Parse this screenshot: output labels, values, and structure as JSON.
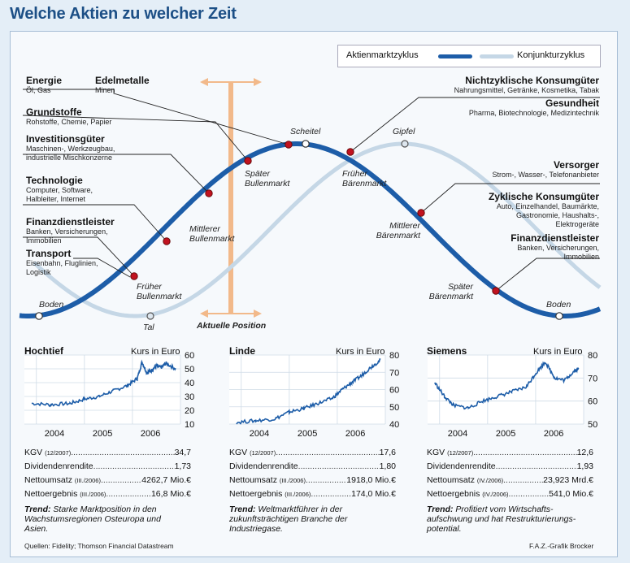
{
  "title": "Welche Aktien zu welcher Zeit",
  "legend": {
    "market": "Aktienmarktzyklus",
    "economy": "Konjunkturzyklus",
    "market_color": "#1d5da8",
    "economy_color": "#c5d7e6"
  },
  "cycle_points": {
    "boden_left": "Boden",
    "tal": "Tal",
    "scheitel": "Scheitel",
    "gipfel": "Gipfel",
    "boden_right": "Boden",
    "frueher_bullen": [
      "Früher",
      "Bullenmarkt"
    ],
    "mittlerer_bullen": [
      "Mittlerer",
      "Bullenmarkt"
    ],
    "spaeter_bullen": [
      "Später",
      "Bullenmarkt"
    ],
    "frueher_baeren": [
      "Früher",
      "Bärenmarkt"
    ],
    "mittlerer_baeren": [
      "Mittlerer",
      "Bärenmarkt"
    ],
    "spaeter_baeren": [
      "Später",
      "Bärenmarkt"
    ],
    "aktuelle_position": "Aktuelle Position"
  },
  "sectors_left": [
    {
      "name": "Energie",
      "desc": [
        "Öl, Gas"
      ]
    },
    {
      "name": "Edelmetalle",
      "desc": [
        "Minen"
      ]
    },
    {
      "name": "Grundstoffe",
      "desc": [
        "Rohstoffe, Chemie, Papier"
      ]
    },
    {
      "name": "Investitionsgüter",
      "desc": [
        "Maschinen-, Werkzeugbau,",
        "industrielle Mischkonzerne"
      ]
    },
    {
      "name": "Technologie",
      "desc": [
        "Computer, Software,",
        "Halbleiter, Internet"
      ]
    },
    {
      "name": "Finanzdienstleister",
      "desc": [
        "Banken, Versicherungen,",
        "Immobilien"
      ]
    },
    {
      "name": "Transport",
      "desc": [
        "Eisenbahn, Fluglinien,",
        "Logistik"
      ]
    }
  ],
  "sectors_right": [
    {
      "name": "Nichtzyklische Konsumgüter",
      "desc": [
        "Nahrungsmittel, Getränke, Kosmetika, Tabak"
      ]
    },
    {
      "name": "Gesundheit",
      "desc": [
        "Pharma, Biotechnologie, Medizintechnik"
      ]
    },
    {
      "name": "Versorger",
      "desc": [
        "Strom-, Wasser-, Telefonanbieter"
      ]
    },
    {
      "name": "Zyklische Konsumgüter",
      "desc": [
        "Auto, Einzelhandel, Baumärkte,",
        "Gastronomie, Haushalts-,",
        "Elektrogeräte"
      ]
    },
    {
      "name": "Finanzdienstleister",
      "desc": [
        "Banken, Versicherungen,",
        "Immobilien"
      ]
    }
  ],
  "stocks": [
    {
      "name": "Hochtief",
      "unit": "Kurs in Euro",
      "years": [
        "2004",
        "2005",
        "2006"
      ],
      "yticks": [
        "60",
        "50",
        "40",
        "30",
        "20",
        "10"
      ],
      "kgv_label": "KGV",
      "kgv_sub": "(12/2007)",
      "kgv": "34,7",
      "div_label": "Dividendenrendite",
      "div": "1,73",
      "umsatz_label": "Nettoumsatz",
      "umsatz_sub": "(III./2006)",
      "umsatz": "4262,7 Mio.€",
      "ergebnis_label": "Nettoergebnis",
      "ergebnis_sub": "(III./2006)",
      "ergebnis": "16,8 Mio.€",
      "trend_label": "Trend:",
      "trend": "Starke Marktposition in den Wachstumsregionen Osteuropa und Asien."
    },
    {
      "name": "Linde",
      "unit": "Kurs in Euro",
      "years": [
        "2004",
        "2005",
        "2006"
      ],
      "yticks": [
        "80",
        "70",
        "60",
        "50",
        "40"
      ],
      "kgv_label": "KGV",
      "kgv_sub": "(12/2007)",
      "kgv": "17,6",
      "div_label": "Dividendenrendite",
      "div": "1,80",
      "umsatz_label": "Nettoumsatz",
      "umsatz_sub": "(III./2006)",
      "umsatz": "1918,0 Mio.€",
      "ergebnis_label": "Nettoergebnis",
      "ergebnis_sub": "(III./2006)",
      "ergebnis": "174,0 Mio.€",
      "trend_label": "Trend:",
      "trend": "Weltmarktführer in der zukunftsträchtigen Branche der Industriegase."
    },
    {
      "name": "Siemens",
      "unit": "Kurs in Euro",
      "years": [
        "2004",
        "2005",
        "2006"
      ],
      "yticks": [
        "80",
        "70",
        "60",
        "50"
      ],
      "kgv_label": "KGV",
      "kgv_sub": "(12/2007)",
      "kgv": "12,6",
      "div_label": "Dividendenrendite",
      "div": "1,93",
      "umsatz_label": "Nettoumsatz",
      "umsatz_sub": "(IV./2006)",
      "umsatz": "23,923 Mrd.€",
      "ergebnis_label": "Nettoergebnis",
      "ergebnis_sub": "(IV./2006)",
      "ergebnis": "541,0 Mio.€",
      "trend_label": "Trend:",
      "trend": "Profitiert vom Wirtschafts- aufschwung und hat Restrukturierungs- potential."
    }
  ],
  "footer": {
    "source": "Quellen: Fidelity; Thomson Financial Datastream",
    "credit": "F.A.Z.-Grafik Brocker"
  },
  "chart_data": [
    {
      "type": "line",
      "title": "Aktienmarktzyklus vs. Konjunkturzyklus",
      "series": [
        {
          "name": "Aktienmarktzyklus",
          "shape": "sine",
          "phase_lead": 0.17
        },
        {
          "name": "Konjunkturzyklus",
          "shape": "sine"
        }
      ],
      "markers": [
        "Boden",
        "Früher Bullenmarkt",
        "Mittlerer Bullenmarkt",
        "Später Bullenmarkt",
        "Scheitel",
        "Früher Bärenmarkt",
        "Mittlerer Bärenmarkt",
        "Später Bärenmarkt",
        "Boden"
      ],
      "current_position": "Später Bullenmarkt"
    },
    {
      "type": "line",
      "title": "Hochtief",
      "ylabel": "Kurs in Euro",
      "ylim": [
        10,
        60
      ],
      "x": [
        "2003.9",
        "2004.3",
        "2004.7",
        "2005.0",
        "2005.3",
        "2005.6",
        "2005.9",
        "2006.1",
        "2006.2",
        "2006.3",
        "2006.4",
        "2006.5",
        "2006.6",
        "2006.7",
        "2006.9"
      ],
      "values": [
        25,
        24,
        25,
        28,
        30,
        34,
        38,
        43,
        55,
        47,
        49,
        52,
        51,
        54,
        50
      ]
    },
    {
      "type": "line",
      "title": "Linde",
      "ylabel": "Kurs in Euro",
      "ylim": [
        40,
        80
      ],
      "x": [
        "2003.9",
        "2004.3",
        "2004.7",
        "2005.0",
        "2005.3",
        "2005.6",
        "2005.9",
        "2006.1",
        "2006.3",
        "2006.5",
        "2006.7",
        "2006.9"
      ],
      "values": [
        41,
        42,
        43,
        47,
        49,
        52,
        55,
        60,
        64,
        68,
        73,
        77
      ]
    },
    {
      "type": "line",
      "title": "Siemens",
      "ylabel": "Kurs in Euro",
      "ylim": [
        50,
        80
      ],
      "x": [
        "2003.9",
        "2004.1",
        "2004.3",
        "2004.6",
        "2004.9",
        "2005.2",
        "2005.5",
        "2005.8",
        "2006.0",
        "2006.2",
        "2006.4",
        "2006.6",
        "2006.8",
        "2006.9"
      ],
      "values": [
        68,
        62,
        58,
        57,
        60,
        62,
        64,
        66,
        72,
        77,
        70,
        69,
        73,
        74
      ]
    }
  ]
}
